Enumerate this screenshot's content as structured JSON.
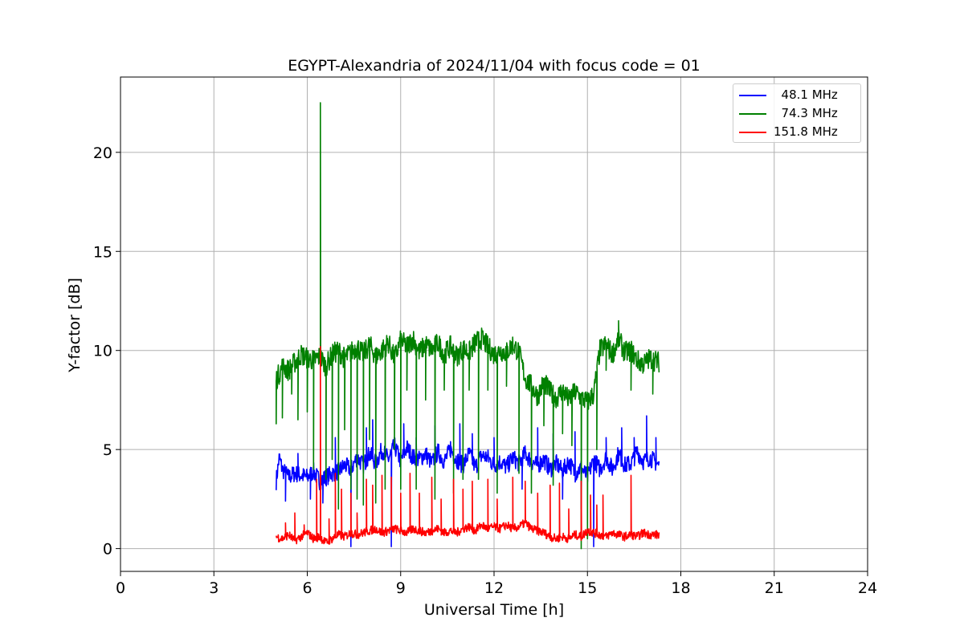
{
  "chart_data": {
    "type": "line",
    "title": "EGYPT-Alexandria of 2024/11/04 with focus code = 01",
    "xlabel": "Universal Time [h]",
    "ylabel": "Y-factor [dB]",
    "xlim": [
      0,
      24
    ],
    "ylim": [
      -1.15,
      23.8
    ],
    "xticks": [
      0,
      3,
      6,
      9,
      12,
      15,
      18,
      21,
      24
    ],
    "yticks": [
      0,
      5,
      10,
      15,
      20
    ],
    "grid": true,
    "legend_position": "top-right",
    "series": [
      {
        "name": "  48.1 MHz",
        "color": "#0000ff",
        "x": [
          5.0,
          5.1,
          5.2,
          5.4,
          5.6,
          5.8,
          6.0,
          6.2,
          6.4,
          6.6,
          6.8,
          7.0,
          7.2,
          7.4,
          7.6,
          7.8,
          8.0,
          8.2,
          8.4,
          8.6,
          8.8,
          9.0,
          9.2,
          9.4,
          9.6,
          9.8,
          10.0,
          10.2,
          10.4,
          10.6,
          10.8,
          11.0,
          11.2,
          11.4,
          11.6,
          11.8,
          12.0,
          12.2,
          12.4,
          12.6,
          12.8,
          13.0,
          13.2,
          13.4,
          13.6,
          13.8,
          14.0,
          14.2,
          14.4,
          14.6,
          14.8,
          15.0,
          15.2,
          15.4,
          15.6,
          15.8,
          16.0,
          16.2,
          16.4,
          16.6,
          16.8,
          17.0,
          17.3
        ],
        "y": [
          3.4,
          4.6,
          4.0,
          3.6,
          3.8,
          3.7,
          3.6,
          3.9,
          3.4,
          3.6,
          3.8,
          3.9,
          4.2,
          4.0,
          4.6,
          4.2,
          4.8,
          4.3,
          5.0,
          4.5,
          5.2,
          4.4,
          5.1,
          4.6,
          4.5,
          4.8,
          4.3,
          4.9,
          4.4,
          5.0,
          4.5,
          4.2,
          4.8,
          4.1,
          4.7,
          4.6,
          4.2,
          4.4,
          4.1,
          4.6,
          4.3,
          4.8,
          4.4,
          4.2,
          4.5,
          4.0,
          4.3,
          3.9,
          4.4,
          3.8,
          4.1,
          3.6,
          4.5,
          4.0,
          4.6,
          4.0,
          4.8,
          4.2,
          4.3,
          4.9,
          4.4,
          4.6,
          4.2
        ],
        "spikes": [
          [
            5.3,
            2.4
          ],
          [
            5.7,
            4.8
          ],
          [
            6.1,
            2.5
          ],
          [
            6.5,
            2.3
          ],
          [
            6.9,
            5.6
          ],
          [
            7.4,
            0.1
          ],
          [
            7.9,
            6.1
          ],
          [
            8.1,
            6.5
          ],
          [
            8.7,
            0.1
          ],
          [
            9.1,
            6.3
          ],
          [
            9.5,
            5.6
          ],
          [
            10.1,
            6.2
          ],
          [
            10.6,
            5.4
          ],
          [
            10.9,
            6.3
          ],
          [
            11.3,
            5.8
          ],
          [
            12.0,
            5.6
          ],
          [
            12.9,
            3.0
          ],
          [
            13.4,
            6.1
          ],
          [
            13.9,
            5.8
          ],
          [
            14.2,
            2.5
          ],
          [
            14.6,
            5.9
          ],
          [
            14.8,
            2.0
          ],
          [
            15.2,
            0.1
          ],
          [
            15.6,
            5.6
          ],
          [
            16.1,
            6.1
          ],
          [
            16.5,
            5.6
          ],
          [
            16.9,
            6.7
          ],
          [
            17.2,
            5.6
          ]
        ]
      },
      {
        "name": "  74.3 MHz",
        "color": "#008000",
        "x": [
          5.0,
          5.2,
          5.4,
          5.6,
          5.8,
          6.0,
          6.2,
          6.4,
          6.6,
          6.8,
          7.0,
          7.2,
          7.4,
          7.6,
          7.8,
          8.0,
          8.2,
          8.4,
          8.6,
          8.8,
          9.0,
          9.2,
          9.4,
          9.6,
          9.8,
          10.0,
          10.2,
          10.4,
          10.6,
          10.8,
          11.0,
          11.2,
          11.4,
          11.6,
          11.8,
          12.0,
          12.2,
          12.4,
          12.6,
          12.8,
          13.0,
          13.2,
          13.4,
          13.6,
          13.8,
          14.0,
          14.2,
          14.4,
          14.6,
          14.8,
          15.0,
          15.2,
          15.4,
          15.6,
          15.8,
          16.0,
          16.2,
          16.4,
          16.6,
          16.8,
          17.0,
          17.3
        ],
        "y": [
          8.5,
          9.2,
          9.0,
          9.4,
          9.8,
          9.6,
          9.5,
          9.7,
          9.2,
          9.8,
          10.0,
          9.6,
          9.9,
          10.2,
          9.8,
          10.3,
          9.7,
          10.0,
          10.4,
          9.6,
          10.5,
          10.2,
          10.6,
          9.9,
          10.3,
          10.0,
          10.4,
          9.8,
          10.2,
          9.7,
          10.1,
          9.9,
          10.4,
          10.6,
          10.2,
          9.8,
          10.0,
          9.9,
          10.3,
          9.9,
          8.6,
          8.2,
          7.7,
          8.4,
          7.9,
          7.6,
          8.0,
          7.5,
          7.9,
          7.6,
          7.4,
          7.8,
          10.0,
          10.3,
          9.8,
          10.6,
          9.9,
          10.0,
          9.5,
          9.3,
          9.6,
          9.4
        ],
        "spikes": [
          [
            5.0,
            6.3
          ],
          [
            5.2,
            6.6
          ],
          [
            5.5,
            7.8
          ],
          [
            5.7,
            6.5
          ],
          [
            6.0,
            6.9
          ],
          [
            6.2,
            4.0
          ],
          [
            6.42,
            22.5
          ],
          [
            6.6,
            3.5
          ],
          [
            6.8,
            4.5
          ],
          [
            7.0,
            2.0
          ],
          [
            7.2,
            6.0
          ],
          [
            7.4,
            3.0
          ],
          [
            7.6,
            2.5
          ],
          [
            7.8,
            2.2
          ],
          [
            8.0,
            5.5
          ],
          [
            8.2,
            2.3
          ],
          [
            8.5,
            3.0
          ],
          [
            8.8,
            5.0
          ],
          [
            9.0,
            3.0
          ],
          [
            9.2,
            8.0
          ],
          [
            9.5,
            3.0
          ],
          [
            9.8,
            7.5
          ],
          [
            10.1,
            2.5
          ],
          [
            10.4,
            8.0
          ],
          [
            10.7,
            2.8
          ],
          [
            11.0,
            3.5
          ],
          [
            11.2,
            8.0
          ],
          [
            11.5,
            3.5
          ],
          [
            11.8,
            8.0
          ],
          [
            12.1,
            2.8
          ],
          [
            12.4,
            8.2
          ],
          [
            12.8,
            3.8
          ],
          [
            13.2,
            2.8
          ],
          [
            13.6,
            6.2
          ],
          [
            13.9,
            3.2
          ],
          [
            14.2,
            5.8
          ],
          [
            14.5,
            5.2
          ],
          [
            14.8,
            0.0
          ],
          [
            15.0,
            0.5
          ],
          [
            15.3,
            5.0
          ],
          [
            15.6,
            9.0
          ],
          [
            16.0,
            11.5
          ],
          [
            16.4,
            8.0
          ],
          [
            16.8,
            9.0
          ],
          [
            17.1,
            7.8
          ]
        ]
      },
      {
        "name": "151.8 MHz",
        "color": "#ff0000",
        "x": [
          5.0,
          5.2,
          5.4,
          5.6,
          5.8,
          6.0,
          6.2,
          6.4,
          6.6,
          6.8,
          7.0,
          7.2,
          7.4,
          7.6,
          7.8,
          8.0,
          8.2,
          8.4,
          8.6,
          8.8,
          9.0,
          9.2,
          9.4,
          9.6,
          9.8,
          10.0,
          10.2,
          10.4,
          10.6,
          10.8,
          11.0,
          11.2,
          11.4,
          11.6,
          11.8,
          12.0,
          12.2,
          12.4,
          12.6,
          12.8,
          13.0,
          13.2,
          13.4,
          13.6,
          13.8,
          14.0,
          14.2,
          14.4,
          14.6,
          14.8,
          15.0,
          15.2,
          15.4,
          15.6,
          15.8,
          16.0,
          16.2,
          16.4,
          16.6,
          16.8,
          17.0,
          17.3
        ],
        "y": [
          0.6,
          0.5,
          0.7,
          0.4,
          0.6,
          0.8,
          0.5,
          0.6,
          0.3,
          0.5,
          0.7,
          0.6,
          0.8,
          0.7,
          0.8,
          0.9,
          1.0,
          0.8,
          0.9,
          1.0,
          0.9,
          0.8,
          1.0,
          0.9,
          0.8,
          0.9,
          1.0,
          0.8,
          0.9,
          0.8,
          1.0,
          1.1,
          0.9,
          1.2,
          1.0,
          1.1,
          1.0,
          1.2,
          1.0,
          1.1,
          1.3,
          1.0,
          0.9,
          0.8,
          0.6,
          0.5,
          0.6,
          0.5,
          0.7,
          0.6,
          0.9,
          0.8,
          0.7,
          0.6,
          0.8,
          0.7,
          0.6,
          0.7,
          0.6,
          0.8,
          0.7,
          0.7
        ],
        "spikes": [
          [
            5.3,
            1.3
          ],
          [
            5.6,
            1.8
          ],
          [
            5.9,
            1.2
          ],
          [
            6.3,
            3.5
          ],
          [
            6.42,
            10.2
          ],
          [
            6.7,
            1.5
          ],
          [
            6.9,
            3.8
          ],
          [
            7.1,
            3.0
          ],
          [
            7.4,
            2.8
          ],
          [
            7.6,
            1.8
          ],
          [
            7.9,
            3.5
          ],
          [
            8.1,
            3.2
          ],
          [
            8.4,
            3.7
          ],
          [
            8.7,
            3.6
          ],
          [
            9.0,
            2.8
          ],
          [
            9.3,
            3.8
          ],
          [
            9.6,
            2.8
          ],
          [
            10.0,
            3.6
          ],
          [
            10.3,
            2.5
          ],
          [
            10.7,
            3.5
          ],
          [
            11.0,
            3.0
          ],
          [
            11.3,
            3.4
          ],
          [
            11.8,
            3.5
          ],
          [
            12.1,
            2.5
          ],
          [
            12.6,
            3.6
          ],
          [
            13.0,
            3.4
          ],
          [
            13.4,
            2.8
          ],
          [
            13.8,
            3.2
          ],
          [
            14.1,
            3.3
          ],
          [
            14.4,
            2.0
          ],
          [
            14.8,
            3.4
          ],
          [
            15.1,
            2.7
          ],
          [
            15.3,
            2.2
          ],
          [
            15.5,
            2.7
          ],
          [
            16.4,
            3.7
          ]
        ]
      }
    ]
  }
}
